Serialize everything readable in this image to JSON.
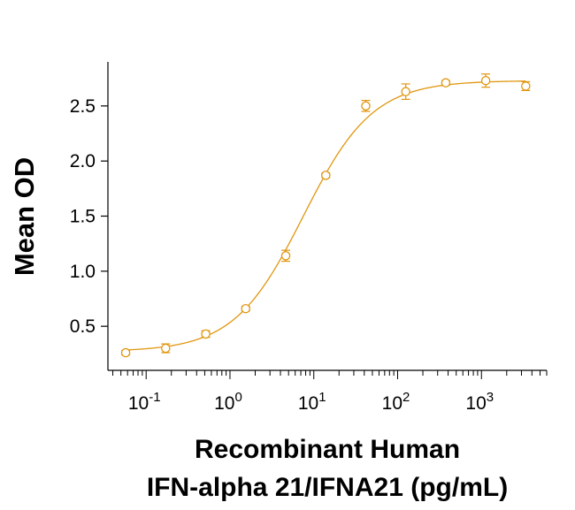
{
  "chart_data": {
    "type": "scatter",
    "title": "",
    "xlabel_line1": "Recombinant Human",
    "xlabel_line2": "IFN-alpha 21/IFNA21 (pg/mL)",
    "ylabel": "Mean OD",
    "x_scale": "log",
    "xlim": [
      0.035,
      6000
    ],
    "ylim": [
      0.1,
      2.9
    ],
    "x_ticks": [
      {
        "value": 0.1,
        "base": "10",
        "exp": "-1"
      },
      {
        "value": 1,
        "base": "10",
        "exp": "0"
      },
      {
        "value": 10,
        "base": "10",
        "exp": "1"
      },
      {
        "value": 100,
        "base": "10",
        "exp": "2"
      },
      {
        "value": 1000,
        "base": "10",
        "exp": "3"
      }
    ],
    "y_ticks": [
      0.5,
      1.0,
      1.5,
      2.0,
      2.5
    ],
    "y_tick_labels": [
      "0.5",
      "1.0",
      "1.5",
      "2.0",
      "2.5"
    ],
    "color": "#E0960F",
    "grid": false,
    "series": [
      {
        "x": [
          0.057,
          0.171,
          0.514,
          1.54,
          4.63,
          13.9,
          41.7,
          125,
          375,
          1125,
          3375
        ],
        "y": [
          0.26,
          0.3,
          0.43,
          0.66,
          1.14,
          1.87,
          2.5,
          2.63,
          2.71,
          2.73,
          2.68
        ],
        "err": [
          0.02,
          0.04,
          0.03,
          0.02,
          0.05,
          0.02,
          0.05,
          0.07,
          0.02,
          0.06,
          0.04
        ]
      }
    ],
    "fit": {
      "type": "4PL",
      "bottom": 0.27,
      "top": 2.73,
      "ec50": 7.5,
      "hill": 1.05
    }
  }
}
